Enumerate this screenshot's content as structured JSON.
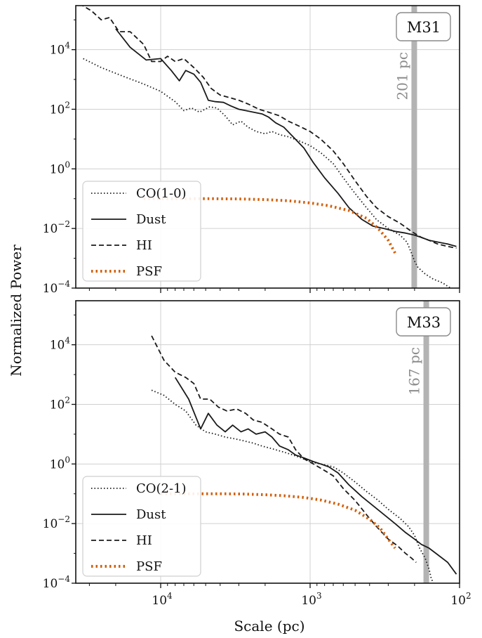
{
  "figure": {
    "ylabel": "Normalized Power",
    "xlabel": "Scale (pc)"
  },
  "colors": {
    "line": "#1a1a1a",
    "psf": "#d35f0a",
    "beam_band": "#b3b3b3",
    "beam_text": "#8c8c8c",
    "grid": "#d0d0d0"
  },
  "chart_data": [
    {
      "type": "line",
      "panel": "M31",
      "title": "M31",
      "annotation": "201 pc",
      "beam_scale_pc": 201,
      "x_axis": {
        "log": true,
        "reversed": true,
        "range_pc": [
          37000,
          100
        ],
        "ticks": [
          {
            "value": 10000,
            "base": "10",
            "exp": "4"
          },
          {
            "value": 1000,
            "base": "10",
            "exp": "3"
          },
          {
            "value": 100,
            "base": "10",
            "exp": "2"
          }
        ]
      },
      "y_axis": {
        "log": true,
        "range": [
          0.0001,
          300000
        ],
        "ticks": [
          {
            "value": 0.0001,
            "base": "10",
            "exp": "−4"
          },
          {
            "value": 0.01,
            "base": "10",
            "exp": "−2"
          },
          {
            "value": 1,
            "base": "10",
            "exp": "0"
          },
          {
            "value": 100,
            "base": "10",
            "exp": "2"
          },
          {
            "value": 10000,
            "base": "10",
            "exp": "4"
          }
        ]
      },
      "grid": true,
      "legend_position": "lower-left",
      "series": [
        {
          "name": "CO(1-0)",
          "style": "dotted",
          "x": [
            33000,
            25000,
            18000,
            13000,
            10000,
            8000,
            7000,
            6200,
            5500,
            4700,
            4200,
            3700,
            3300,
            2900,
            2600,
            2300,
            2000,
            1800,
            1600,
            1400,
            1200,
            1000,
            850,
            700,
            600,
            500,
            420,
            360,
            300,
            250,
            225,
            210,
            200,
            190,
            170,
            150,
            130,
            115,
            105
          ],
          "y": [
            5000,
            2500,
            1300,
            700,
            400,
            180,
            90,
            110,
            80,
            120,
            110,
            60,
            30,
            40,
            25,
            18,
            15,
            18,
            14,
            12,
            9,
            6,
            3.5,
            1.5,
            0.5,
            0.15,
            0.05,
            0.02,
            0.01,
            0.006,
            0.0035,
            0.0015,
            0.0008,
            0.0005,
            0.0003,
            0.0002,
            0.00015,
            0.0001,
            7e-05
          ]
        },
        {
          "name": "Dust",
          "style": "solid",
          "x": [
            20000,
            16000,
            12500,
            10000,
            8500,
            7500,
            6800,
            6000,
            5400,
            4800,
            4300,
            3800,
            3400,
            3000,
            2700,
            2400,
            2100,
            1900,
            1700,
            1500,
            1300,
            1100,
            950,
            800,
            650,
            550,
            450,
            380,
            320,
            270,
            230,
            200,
            180,
            160,
            140,
            120,
            105
          ],
          "y": [
            50000,
            12000,
            4500,
            5000,
            2000,
            900,
            2000,
            1500,
            800,
            200,
            180,
            170,
            130,
            100,
            90,
            80,
            70,
            55,
            35,
            25,
            12,
            5,
            1.6,
            0.5,
            0.15,
            0.05,
            0.02,
            0.012,
            0.01,
            0.008,
            0.007,
            0.006,
            0.005,
            0.004,
            0.0035,
            0.003,
            0.0025
          ]
        },
        {
          "name": "HI",
          "style": "dashed",
          "x": [
            35000,
            29000,
            25000,
            22000,
            19000,
            16000,
            13000,
            11500,
            10000,
            9000,
            8000,
            7000,
            6000,
            5200,
            4600,
            4000,
            3500,
            3000,
            2600,
            2200,
            1900,
            1600,
            1400,
            1200,
            1000,
            850,
            700,
            600,
            500,
            420,
            360,
            300,
            250,
            210,
            180,
            160,
            140,
            120,
            105
          ],
          "y": [
            350000,
            200000,
            100000,
            120000,
            40000,
            40000,
            15000,
            4000,
            4000,
            6000,
            4000,
            5000,
            2500,
            1200,
            500,
            300,
            250,
            200,
            150,
            100,
            80,
            60,
            40,
            28,
            18,
            10,
            4,
            1.5,
            0.4,
            0.12,
            0.05,
            0.025,
            0.015,
            0.008,
            0.005,
            0.004,
            0.003,
            0.0025,
            0.0022
          ]
        },
        {
          "name": "PSF",
          "style": "dotted-thick",
          "x": [
            13000,
            8000,
            5000,
            3000,
            2000,
            1400,
            1000,
            750,
            550,
            420,
            350,
            300,
            270
          ],
          "y": [
            0.1,
            0.1,
            0.1,
            0.098,
            0.093,
            0.085,
            0.072,
            0.058,
            0.04,
            0.022,
            0.01,
            0.004,
            0.0015
          ]
        }
      ]
    },
    {
      "type": "line",
      "panel": "M33",
      "title": "M33",
      "annotation": "167 pc",
      "beam_scale_pc": 167,
      "x_axis": {
        "log": true,
        "reversed": true,
        "range_pc": [
          37000,
          100
        ],
        "ticks": [
          {
            "value": 10000,
            "base": "10",
            "exp": "4"
          },
          {
            "value": 1000,
            "base": "10",
            "exp": "3"
          },
          {
            "value": 100,
            "base": "10",
            "exp": "2"
          }
        ]
      },
      "y_axis": {
        "log": true,
        "range": [
          0.0001,
          300000
        ],
        "ticks": [
          {
            "value": 0.0001,
            "base": "10",
            "exp": "−4"
          },
          {
            "value": 0.01,
            "base": "10",
            "exp": "−2"
          },
          {
            "value": 1,
            "base": "10",
            "exp": "0"
          },
          {
            "value": 100,
            "base": "10",
            "exp": "2"
          },
          {
            "value": 10000,
            "base": "10",
            "exp": "4"
          }
        ]
      },
      "grid": true,
      "legend_position": "lower-left",
      "series": [
        {
          "name": "CO(2-1)",
          "style": "dotted",
          "x": [
            11500,
            9500,
            8000,
            6800,
            5800,
            5000,
            4300,
            3700,
            3200,
            2800,
            2400,
            2100,
            1900,
            1700,
            1500,
            1300,
            1150,
            1000,
            850,
            700,
            600,
            500,
            420,
            350,
            300,
            250,
            220,
            200,
            185,
            170,
            160,
            155,
            150
          ],
          "y": [
            300,
            200,
            100,
            60,
            20,
            12,
            10,
            8,
            7,
            6,
            5,
            4,
            3.5,
            3,
            2.5,
            2,
            1.6,
            1.2,
            1,
            0.8,
            0.5,
            0.25,
            0.12,
            0.06,
            0.03,
            0.015,
            0.008,
            0.004,
            0.0015,
            0.0007,
            0.0003,
            0.00015,
            0.0001
          ]
        },
        {
          "name": "Dust",
          "style": "solid",
          "x": [
            8000,
            6500,
            5400,
            4800,
            4200,
            3700,
            3300,
            2900,
            2600,
            2300,
            2000,
            1800,
            1600,
            1400,
            1250,
            1100,
            950,
            850,
            750,
            650,
            550,
            450,
            380,
            320,
            270,
            230,
            200,
            180,
            160,
            140,
            120,
            105
          ],
          "y": [
            800,
            150,
            15,
            50,
            20,
            12,
            20,
            12,
            15,
            10,
            12,
            8,
            4,
            3,
            2,
            1.6,
            1.2,
            1,
            0.8,
            0.5,
            0.2,
            0.08,
            0.04,
            0.02,
            0.01,
            0.005,
            0.003,
            0.002,
            0.0015,
            0.0009,
            0.0005,
            0.0002
          ]
        },
        {
          "name": "HI",
          "style": "dashed",
          "x": [
            11500,
            9500,
            8000,
            6800,
            6000,
            5400,
            4700,
            4100,
            3600,
            3100,
            2700,
            2400,
            2100,
            1800,
            1600,
            1400,
            1250,
            1100,
            950,
            800,
            700,
            600,
            500,
            420,
            360,
            300,
            260,
            230,
            210,
            195
          ],
          "y": [
            20000,
            3000,
            1200,
            800,
            500,
            150,
            150,
            80,
            60,
            70,
            50,
            30,
            25,
            15,
            10,
            8,
            3,
            1.5,
            1,
            0.6,
            0.4,
            0.15,
            0.06,
            0.02,
            0.008,
            0.003,
            0.0018,
            0.001,
            0.0007,
            0.0005
          ]
        },
        {
          "name": "PSF",
          "style": "dotted-thick",
          "x": [
            10000,
            6000,
            4000,
            2800,
            2000,
            1500,
            1100,
            850,
            650,
            500,
            400,
            340,
            300,
            270
          ],
          "y": [
            0.1,
            0.1,
            0.1,
            0.098,
            0.093,
            0.086,
            0.075,
            0.062,
            0.045,
            0.028,
            0.014,
            0.007,
            0.003,
            0.0015
          ]
        }
      ]
    }
  ]
}
